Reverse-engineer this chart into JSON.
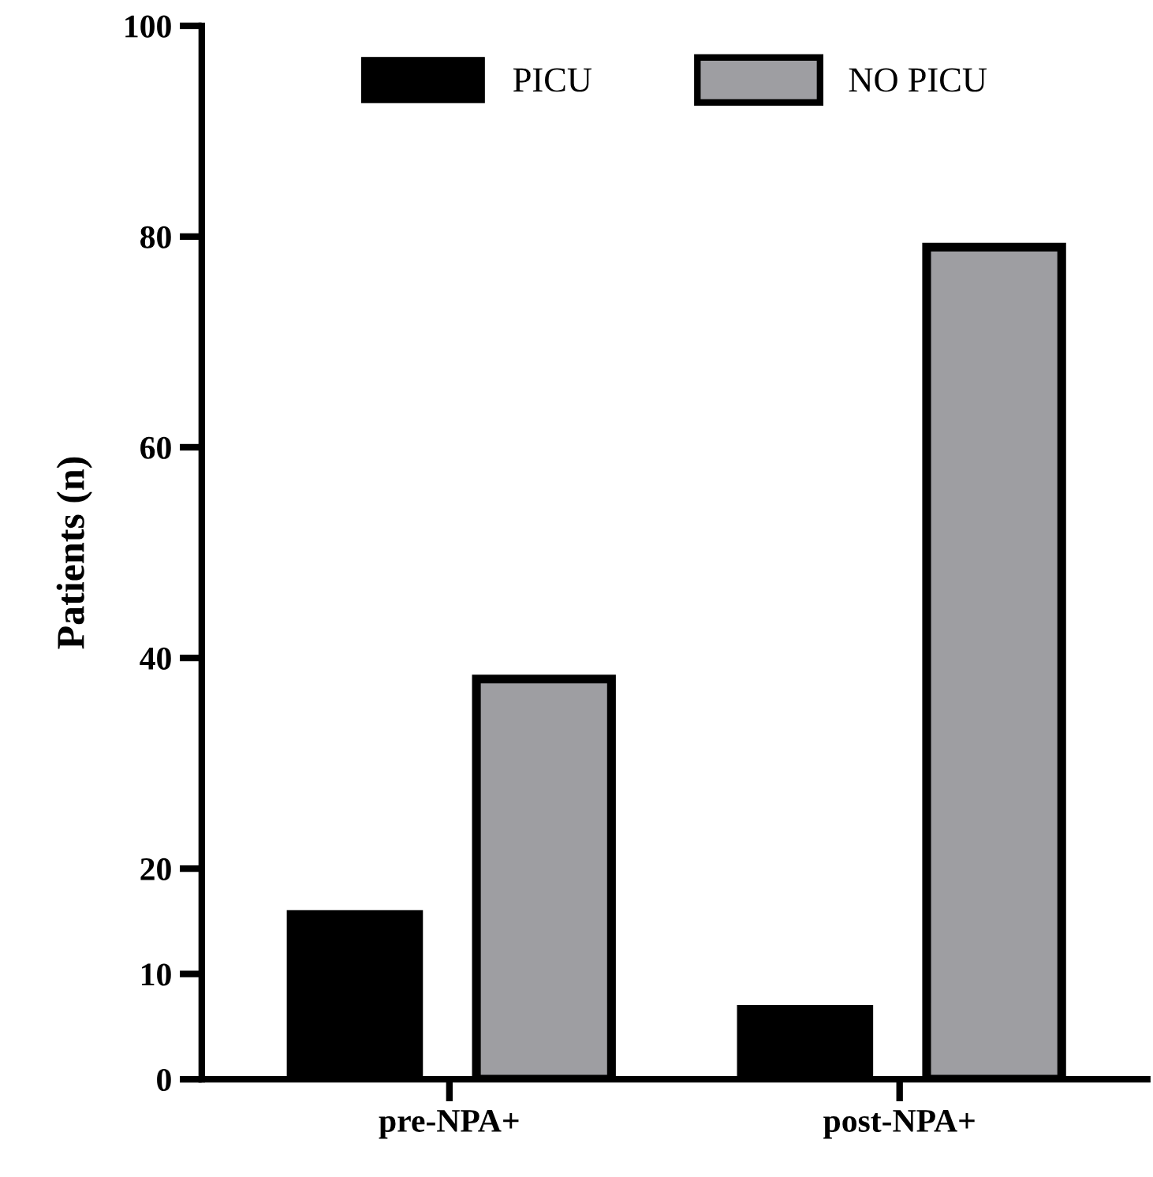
{
  "chart_data": {
    "type": "bar",
    "ylabel": "Patients (n)",
    "categories": [
      "pre-NPA+",
      "post-NPA+"
    ],
    "series": [
      {
        "name": "PICU",
        "color": "#000000",
        "values": [
          16,
          7
        ]
      },
      {
        "name": "NO PICU",
        "color": "#9e9ea2",
        "values": [
          38,
          79
        ]
      }
    ],
    "ylim": [
      0,
      100
    ],
    "yticks": [
      0,
      10,
      20,
      40,
      60,
      80,
      100
    ],
    "grid": false,
    "legend": "top"
  }
}
